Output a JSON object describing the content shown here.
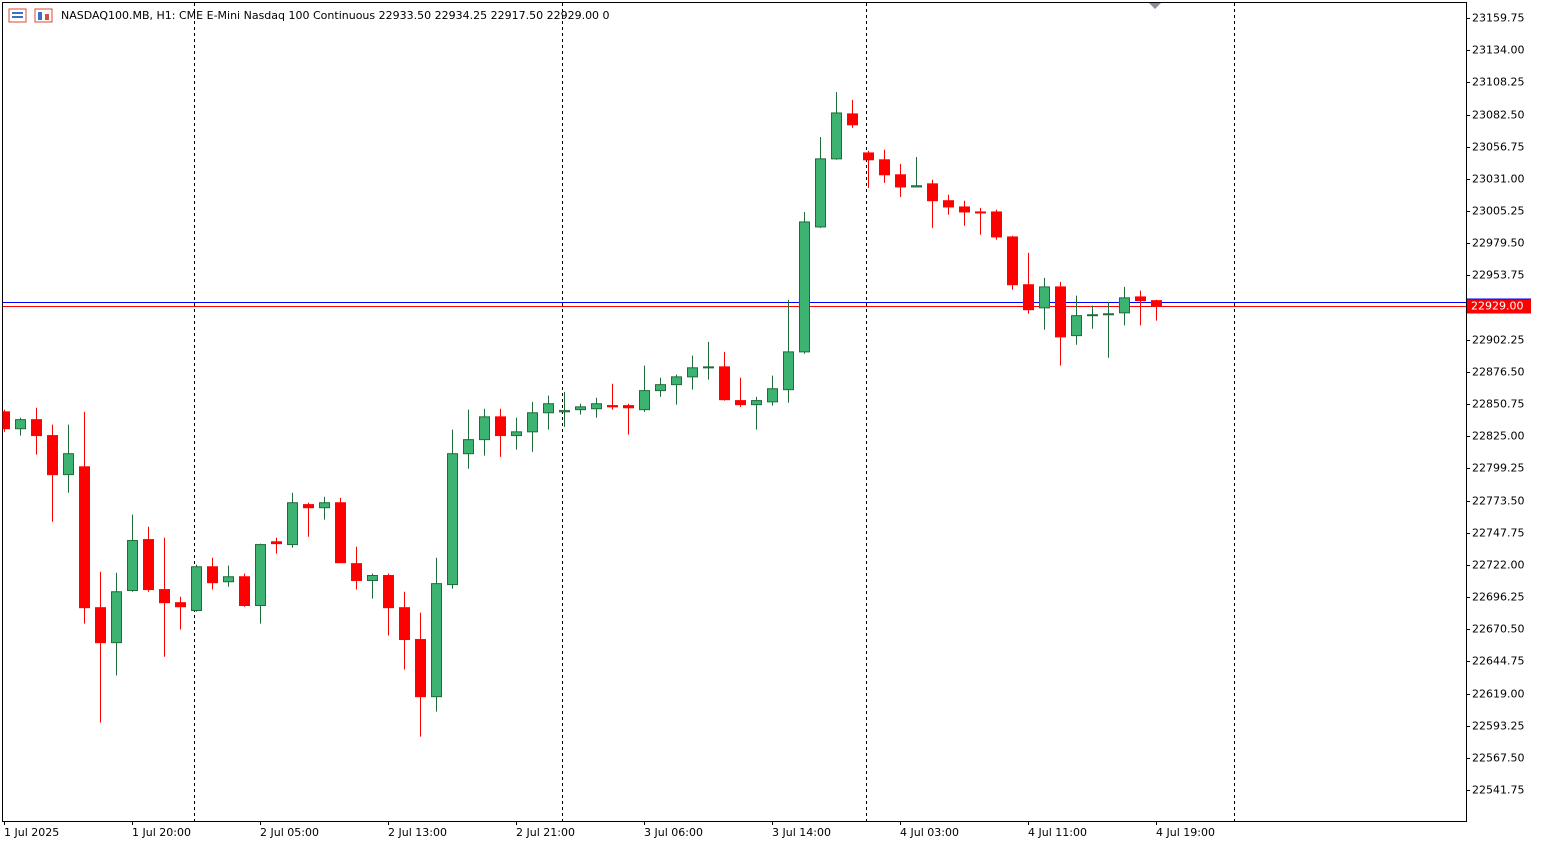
{
  "chart_data": {
    "type": "candlestick",
    "title": "NASDAQ100.MB, H1:  CME E-Mini Nasdaq 100 Continuous  22933.50 22934.25 22917.50 22929.00  0",
    "categories": [
      "1 Jul 2025",
      null,
      null,
      null,
      null,
      null,
      null,
      null,
      "1 Jul 20:00",
      null,
      null,
      null,
      null,
      null,
      null,
      null,
      "2 Jul 05:00",
      null,
      null,
      null,
      null,
      null,
      null,
      null,
      "2 Jul 13:00",
      null,
      null,
      null,
      null,
      null,
      null,
      null,
      "2 Jul 21:00",
      null,
      null,
      null,
      null,
      null,
      null,
      null,
      "3 Jul 06:00",
      null,
      null,
      null,
      null,
      null,
      null,
      null,
      "3 Jul 14:00",
      null,
      null,
      null,
      null,
      null,
      null,
      null,
      "4 Jul 03:00",
      null,
      null,
      null,
      null,
      null,
      null,
      null,
      "4 Jul 11:00",
      null,
      null,
      null,
      null,
      null,
      null,
      null,
      "4 Jul 19:00"
    ],
    "open": [
      22844.5,
      22831,
      22838.25,
      22825.5,
      22794.25,
      22800.5,
      22687.75,
      22659.75,
      22701.5,
      22742.25,
      22702.25,
      22691.75,
      22685.5,
      22720.5,
      22708.5,
      22712.5,
      22689.5,
      22740.5,
      22738.25,
      22770.25,
      22767.75,
      22771.75,
      22723,
      22709.5,
      22713.5,
      22687.75,
      22662.25,
      22616.5,
      22706.25,
      22811,
      22822.25,
      22840.5,
      22825.5,
      22828.5,
      22843.75,
      22844.5,
      22846.25,
      22847,
      22849.5,
      22849.5,
      22846.25,
      22861.5,
      22866.25,
      22872.5,
      22879.75,
      22880.5,
      22853.5,
      22850.25,
      22852.5,
      22862.25,
      22892.5,
      22992.5,
      23047,
      23083,
      23051.75,
      23046.25,
      23034.25,
      23024.5,
      23027,
      23013.5,
      23008.5,
      23004.5,
      23004.5,
      22984.5,
      22946.25,
      22927.75,
      22944.5,
      22905.5,
      22921.5,
      22922.25,
      22923.75,
      22936.5,
      22933.5
    ],
    "high": [
      22846.25,
      22839.75,
      22847.75,
      22834.25,
      22834.25,
      22844.5,
      22716.5,
      22715.75,
      22762.25,
      22752.5,
      22743.75,
      22696.5,
      22722.25,
      22727.75,
      22721.5,
      22715,
      22739,
      22743.75,
      22779.75,
      22771.75,
      22776.5,
      22775.75,
      22736.5,
      22715,
      22715,
      22700.5,
      22683.75,
      22727.75,
      22830.25,
      22846.25,
      22847,
      22847,
      22839.75,
      22852.5,
      22857.5,
      22860.5,
      22851,
      22855.75,
      22867,
      22851,
      22881.5,
      22871.75,
      22874.25,
      22889.5,
      22900.5,
      22892.5,
      22871.75,
      22856.5,
      22873.5,
      22934.25,
      23004.5,
      23064.5,
      23100.5,
      23094.25,
      23053.5,
      23054.25,
      23043,
      23048.5,
      23030.25,
      23018.25,
      23013.5,
      23007.75,
      23006.25,
      22985.5,
      22971.75,
      22951.75,
      22948.5,
      22937.5,
      22929.5,
      22932.5,
      22944.5,
      22941.5,
      22934.25
    ],
    "low": [
      22828.5,
      22825.5,
      22810.25,
      22756.5,
      22779.75,
      22675,
      22595.75,
      22633.5,
      22700.5,
      22700.5,
      22648.5,
      22670.25,
      22684.5,
      22702.25,
      22704.5,
      22688.5,
      22675,
      22731,
      22735.75,
      22744.5,
      22758.25,
      22723.75,
      22702.25,
      22695,
      22665.5,
      22638.25,
      22584.5,
      22604.5,
      22703,
      22799,
      22809.5,
      22808.5,
      22814.25,
      22812.5,
      22830.25,
      22832.5,
      22842.25,
      22839.75,
      22846.25,
      22826.25,
      22844.5,
      22856.5,
      22850.25,
      22862.25,
      22870.25,
      22853.5,
      22848.5,
      22830.25,
      22849.5,
      22851.75,
      22891,
      22991.75,
      23046.25,
      23071.75,
      23023.75,
      23027.75,
      23016.5,
      23024.5,
      22991.75,
      23002.25,
      22993.5,
      22986.25,
      22982.25,
      22942.25,
      22923,
      22910.25,
      22881.5,
      22898.25,
      22911,
      22887.75,
      22913.75,
      22913.75,
      22917.5
    ],
    "close": [
      22831,
      22838.25,
      22825.5,
      22794.25,
      22811,
      22687.75,
      22659.75,
      22700.5,
      22741.5,
      22702.25,
      22691.75,
      22688.5,
      22720.5,
      22707.75,
      22712.5,
      22689.5,
      22738.25,
      22739,
      22771.75,
      22767.75,
      22771.75,
      22723.75,
      22709.5,
      22713.5,
      22687.75,
      22662.25,
      22616.5,
      22707,
      22811,
      22822.25,
      22840.5,
      22825.5,
      22828.5,
      22843.75,
      22851,
      22845.5,
      22848.5,
      22851,
      22848.5,
      22847.75,
      22861.5,
      22866.25,
      22872.5,
      22879.75,
      22880.5,
      22854.25,
      22850.25,
      22853.5,
      22863,
      22892.5,
      22996.5,
      23047,
      23083.75,
      23074.25,
      23046.25,
      23034.25,
      23024.5,
      23025.5,
      23013.5,
      23008.5,
      23004.5,
      23004.25,
      22984.5,
      22946.25,
      22926.25,
      22944.5,
      22904.5,
      22921.5,
      22922.25,
      22923,
      22935.75,
      22933.5,
      22929
    ],
    "up_color": "#3cb371",
    "down_color": "#ff0000",
    "ylim": [
      22517.0,
      23172.55
    ],
    "yticks": [
      23159.75,
      {
        "value": 23134,
        "label": "23134.00"
      },
      23108.25,
      {
        "value": 23082.5,
        "label": "23082.50"
      },
      23056.75,
      {
        "value": 23031,
        "label": "23031.00"
      },
      23005.25,
      {
        "value": 22979.5,
        "label": "22979.50"
      },
      22953.75,
      22902.25,
      {
        "value": 22876.5,
        "label": "22876.50"
      },
      22850.75,
      {
        "value": 22825,
        "label": "22825.00"
      },
      22799.25,
      {
        "value": 22773.5,
        "label": "22773.50"
      },
      22747.75,
      {
        "value": 22722,
        "label": "22722.00"
      },
      22696.25,
      {
        "value": 22670.5,
        "label": "22670.50"
      },
      22644.75,
      {
        "value": 22619,
        "label": "22619.00"
      },
      22593.25,
      {
        "value": 22567.5,
        "label": "22567.50"
      },
      22541.75
    ],
    "bid": {
      "value": 22929,
      "label": "22929.00"
    },
    "bid_color": "#ff0000",
    "ask": 22932.75,
    "ask_color": "#0000ff"
  }
}
